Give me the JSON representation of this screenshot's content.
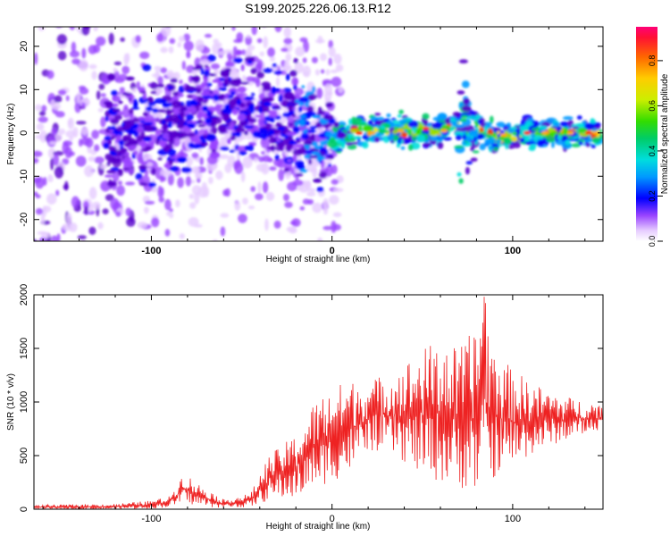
{
  "title": "S199.2025.226.06.13.R12",
  "colors": {
    "snr_line": "#ee2222",
    "axis": "#000000",
    "background": "#ffffff"
  },
  "chart_data": [
    {
      "type": "heatmap",
      "name": "spectrogram",
      "xlabel": "Height of straight line (km)",
      "ylabel": "Frequency (Hz)",
      "xlim": [
        -165,
        150
      ],
      "ylim": [
        -25,
        24.5
      ],
      "x_ticks": [
        -100,
        0,
        100
      ],
      "x_tick_labels": [
        "-100",
        "0",
        "100"
      ],
      "y_ticks": [
        -20,
        -10,
        0,
        10,
        20
      ],
      "y_tick_labels": [
        "-20",
        "-10",
        "0",
        "10",
        "20"
      ],
      "colorbar": {
        "label": "Normalized spectral amplitude",
        "range": [
          0,
          0.95
        ],
        "ticks": [
          0,
          0.2,
          0.4,
          0.6,
          0.8
        ],
        "tick_labels": [
          "0.0",
          "0.2",
          "0.4",
          "0.6",
          "0.8"
        ],
        "colors": [
          "#ffffff",
          "#e6ccff",
          "#9944ff",
          "#5500cc",
          "#0000ff",
          "#0099ff",
          "#00dddd",
          "#00cc66",
          "#33dd00",
          "#aadd00",
          "#ffee00",
          "#ff9900",
          "#ff3300",
          "#ff0066"
        ]
      },
      "description_ridge": [
        {
          "x": -120,
          "f": 0
        },
        {
          "x": -90,
          "f": 2
        },
        {
          "x": -70,
          "f": 6
        },
        {
          "x": -50,
          "f": 6
        },
        {
          "x": -30,
          "f": 3
        },
        {
          "x": -10,
          "f": 0
        },
        {
          "x": 0,
          "f": -1
        },
        {
          "x": 20,
          "f": 0.5
        },
        {
          "x": 60,
          "f": 0.5
        },
        {
          "x": 75,
          "f": 2.5
        },
        {
          "x": 90,
          "f": -1
        },
        {
          "x": 120,
          "f": 0
        },
        {
          "x": 148,
          "f": 0
        }
      ]
    },
    {
      "type": "line",
      "name": "snr",
      "xlabel": "Height of straight line (km)",
      "ylabel": "SNR (10 * v/v)",
      "xlim": [
        -165,
        150
      ],
      "ylim": [
        0,
        2000
      ],
      "x_ticks": [
        -100,
        0,
        100
      ],
      "x_tick_labels": [
        "-100",
        "0",
        "100"
      ],
      "y_ticks": [
        0,
        500,
        1000,
        1500,
        2000
      ],
      "y_tick_labels": [
        "0",
        "500",
        "1000",
        "1500",
        "2000"
      ],
      "envelope": [
        {
          "x": -165,
          "low": 0,
          "high": 40
        },
        {
          "x": -120,
          "low": 0,
          "high": 50
        },
        {
          "x": -100,
          "low": 5,
          "high": 80
        },
        {
          "x": -90,
          "low": 20,
          "high": 120
        },
        {
          "x": -82,
          "low": 60,
          "high": 350
        },
        {
          "x": -75,
          "low": 30,
          "high": 250
        },
        {
          "x": -60,
          "low": 10,
          "high": 90
        },
        {
          "x": -45,
          "low": 20,
          "high": 150
        },
        {
          "x": -35,
          "low": 80,
          "high": 500
        },
        {
          "x": -20,
          "low": 100,
          "high": 700
        },
        {
          "x": -10,
          "low": 200,
          "high": 1000
        },
        {
          "x": 0,
          "low": 250,
          "high": 1150
        },
        {
          "x": 10,
          "low": 350,
          "high": 1200
        },
        {
          "x": 20,
          "low": 550,
          "high": 1200
        },
        {
          "x": 35,
          "low": 500,
          "high": 1300
        },
        {
          "x": 50,
          "low": 300,
          "high": 1500
        },
        {
          "x": 60,
          "low": 250,
          "high": 1600
        },
        {
          "x": 70,
          "low": 200,
          "high": 1500
        },
        {
          "x": 80,
          "low": 150,
          "high": 1700
        },
        {
          "x": 84,
          "low": 100,
          "high": 2000
        },
        {
          "x": 90,
          "low": 300,
          "high": 1500
        },
        {
          "x": 100,
          "low": 400,
          "high": 1300
        },
        {
          "x": 115,
          "low": 550,
          "high": 1150
        },
        {
          "x": 130,
          "low": 650,
          "high": 1050
        },
        {
          "x": 150,
          "low": 750,
          "high": 980
        }
      ]
    }
  ]
}
